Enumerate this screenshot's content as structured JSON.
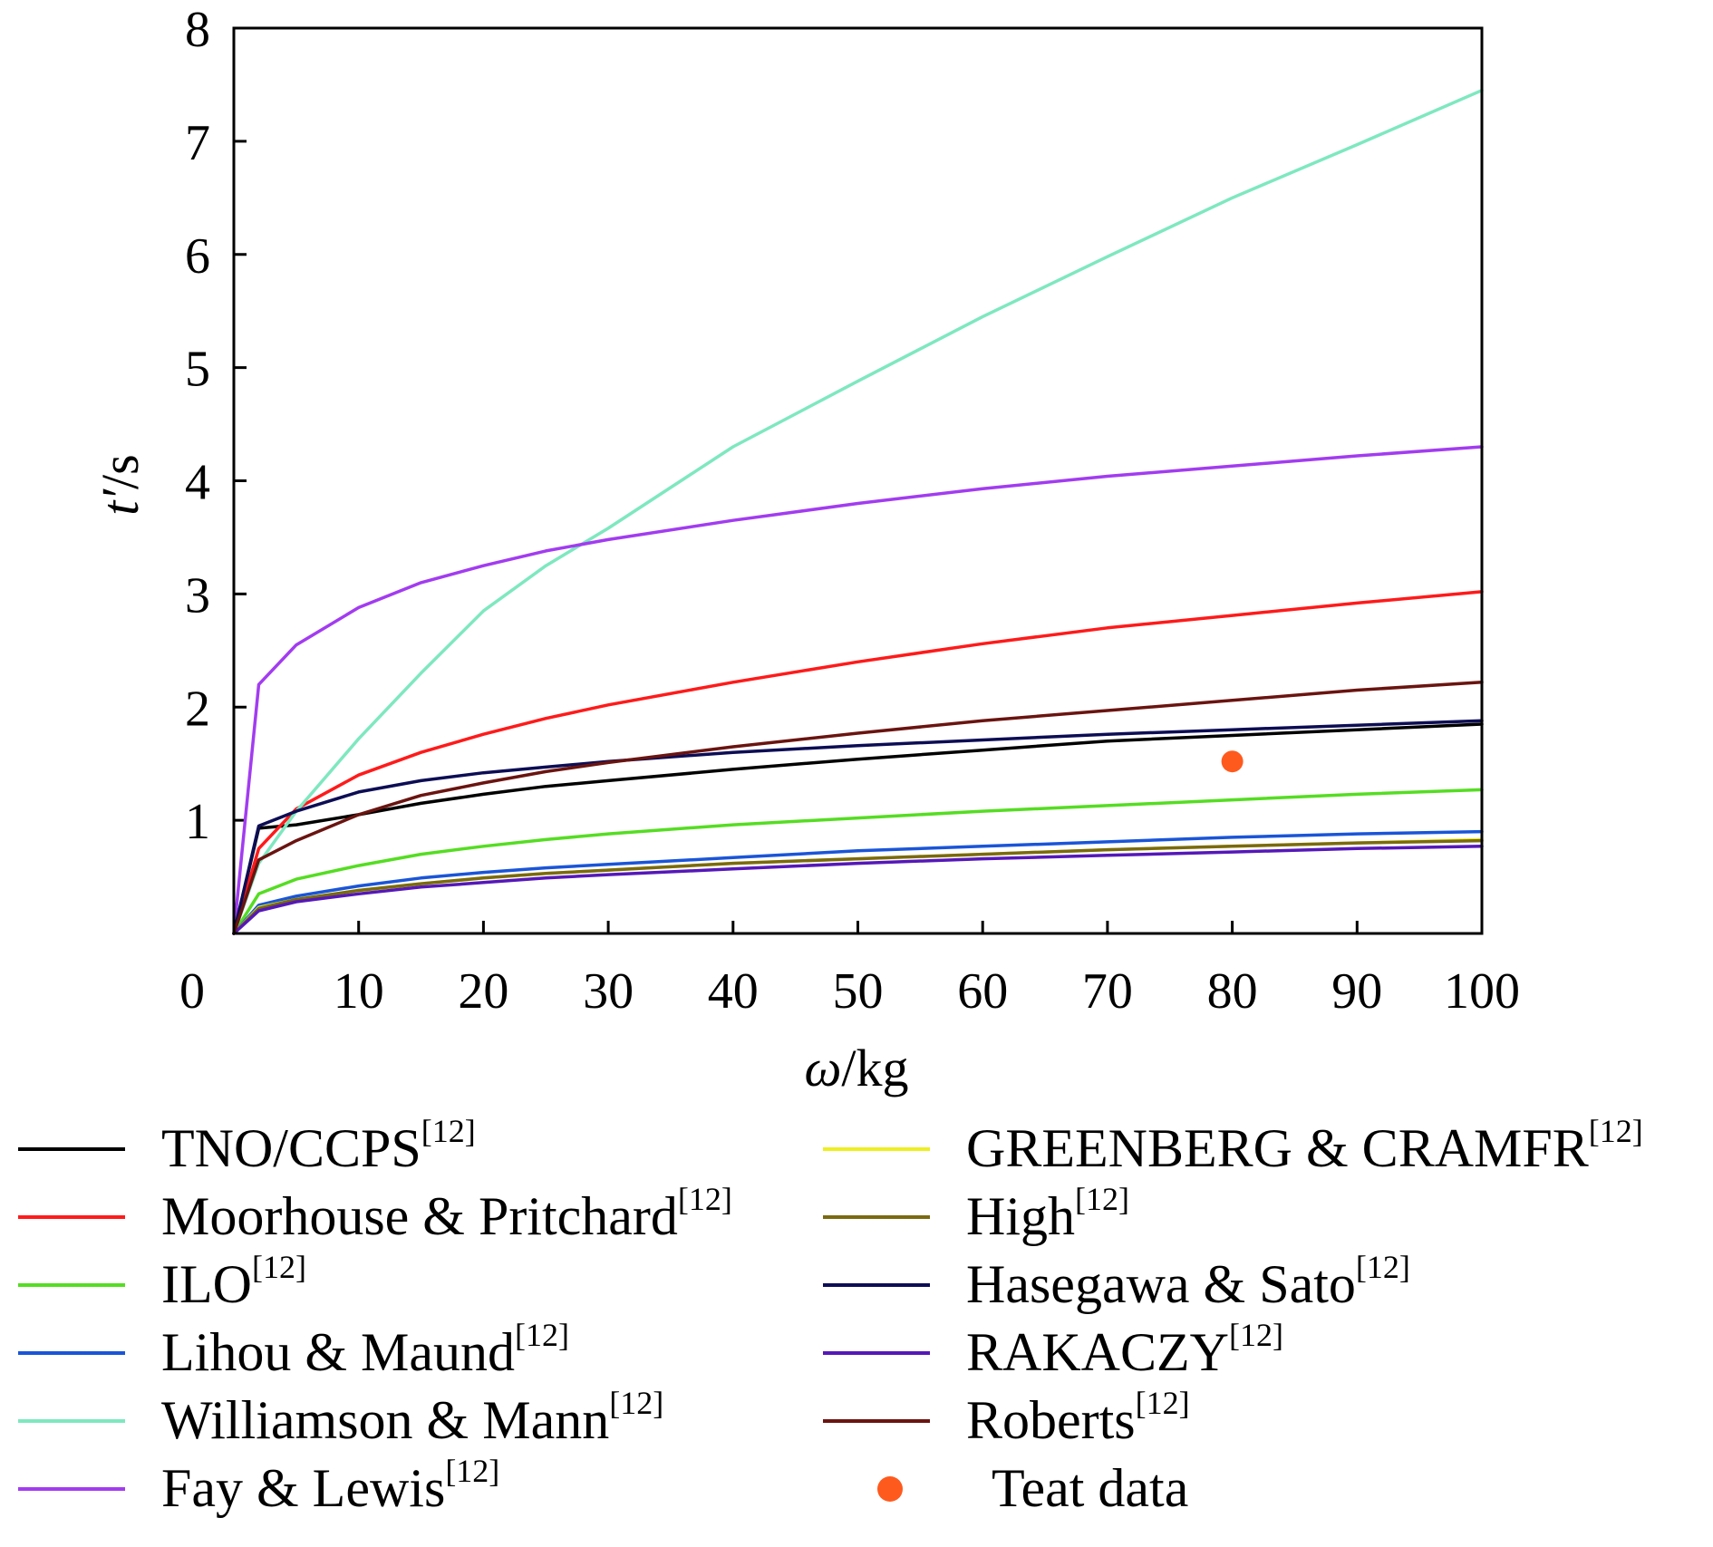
{
  "chart_data": {
    "type": "line",
    "xlabel_italic": "ω",
    "xlabel_rest": "/kg",
    "ylabel_italic": "t′",
    "ylabel_rest": "/s",
    "xlim": [
      0,
      100
    ],
    "ylim": [
      0,
      8
    ],
    "xticks": [
      0,
      10,
      20,
      30,
      40,
      50,
      60,
      70,
      80,
      90,
      100
    ],
    "yticks": [
      1,
      2,
      3,
      4,
      5,
      6,
      7,
      8
    ],
    "grid": false,
    "legend_placement": "bottom",
    "x": [
      0,
      2,
      5,
      10,
      15,
      20,
      25,
      30,
      40,
      50,
      60,
      70,
      80,
      90,
      100
    ],
    "series": [
      {
        "name": "TNO/CCPS",
        "ref": "[12]",
        "color": "#000000",
        "values": [
          0,
          0.93,
          0.96,
          1.05,
          1.15,
          1.23,
          1.3,
          1.35,
          1.45,
          1.54,
          1.62,
          1.7,
          1.75,
          1.8,
          1.85
        ]
      },
      {
        "name": "Moorhouse & Pritchard",
        "ref": "[12]",
        "color": "#ff1a1a",
        "values": [
          0,
          0.75,
          1.1,
          1.4,
          1.6,
          1.76,
          1.9,
          2.02,
          2.22,
          2.4,
          2.56,
          2.7,
          2.81,
          2.92,
          3.02
        ]
      },
      {
        "name": "ILO",
        "ref": "[12]",
        "color": "#55dd22",
        "values": [
          0,
          0.35,
          0.48,
          0.6,
          0.7,
          0.77,
          0.83,
          0.88,
          0.96,
          1.02,
          1.08,
          1.13,
          1.18,
          1.23,
          1.27
        ]
      },
      {
        "name": "Lihou & Maund",
        "ref": "[12]",
        "color": "#1a55d8",
        "values": [
          0,
          0.25,
          0.33,
          0.42,
          0.49,
          0.54,
          0.58,
          0.61,
          0.67,
          0.73,
          0.77,
          0.81,
          0.85,
          0.88,
          0.9
        ]
      },
      {
        "name": "Williamson & Mann",
        "ref": "[12]",
        "color": "#7ee8c0",
        "values": [
          0,
          0.62,
          1.08,
          1.72,
          2.3,
          2.85,
          3.25,
          3.58,
          4.3,
          4.88,
          5.45,
          5.98,
          6.5,
          6.97,
          7.45
        ]
      },
      {
        "name": "Fay & Lewis",
        "ref": "[12]",
        "color": "#a23cf0",
        "values": [
          0,
          2.2,
          2.55,
          2.88,
          3.1,
          3.25,
          3.38,
          3.48,
          3.65,
          3.8,
          3.93,
          4.04,
          4.13,
          4.22,
          4.3
        ]
      },
      {
        "name": "GREENBERG & CRAMFR",
        "ref": "[12]",
        "color": "#eeee22",
        "values": [
          0,
          0.23,
          0.3,
          0.38,
          0.44,
          0.49,
          0.53,
          0.56,
          0.62,
          0.66,
          0.7,
          0.74,
          0.77,
          0.8,
          0.83
        ]
      },
      {
        "name": "High",
        "ref": "[12]",
        "color": "#7a6a10",
        "values": [
          0,
          0.22,
          0.3,
          0.38,
          0.44,
          0.49,
          0.53,
          0.56,
          0.62,
          0.66,
          0.7,
          0.74,
          0.77,
          0.8,
          0.82
        ]
      },
      {
        "name": "Hasegawa & Sato",
        "ref": "[12]",
        "color": "#0d0d55",
        "values": [
          0,
          0.95,
          1.08,
          1.25,
          1.35,
          1.42,
          1.47,
          1.52,
          1.6,
          1.66,
          1.71,
          1.76,
          1.8,
          1.84,
          1.88
        ]
      },
      {
        "name": "RAKACZY",
        "ref": "[12]",
        "color": "#5518b8",
        "values": [
          0,
          0.2,
          0.28,
          0.35,
          0.41,
          0.45,
          0.49,
          0.52,
          0.57,
          0.62,
          0.66,
          0.69,
          0.72,
          0.75,
          0.77
        ]
      },
      {
        "name": "Roberts",
        "ref": "[12]",
        "color": "#6a1410",
        "values": [
          0,
          0.65,
          0.82,
          1.05,
          1.22,
          1.33,
          1.43,
          1.51,
          1.65,
          1.77,
          1.88,
          1.97,
          2.06,
          2.15,
          2.22
        ]
      }
    ],
    "points": [
      {
        "name": "Teat data",
        "color": "#ff5a1e",
        "x": 80,
        "y": 1.52
      }
    ]
  }
}
